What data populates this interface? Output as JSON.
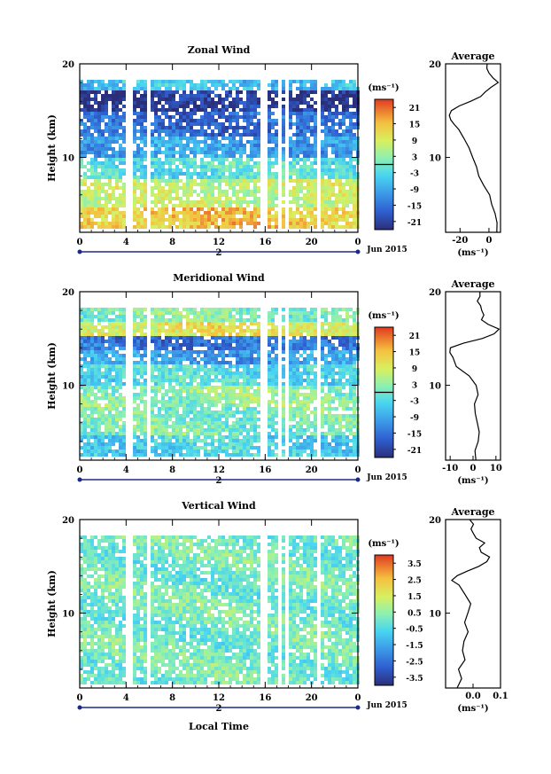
{
  "figure": {
    "date_label": "Jun 2015",
    "day_label": "2",
    "xlabel_bottom": "Local Time",
    "x_ticks": [
      "0",
      "4",
      "8",
      "12",
      "16",
      "20",
      "0"
    ],
    "height_ticks": [
      "20",
      "10"
    ],
    "ylabel": "Height (km)",
    "average_title": "Average",
    "unit_label": "(ms⁻¹)"
  },
  "chart_data": [
    {
      "type": "heatmap",
      "title": "Zonal Wind",
      "xlabel": "",
      "ylabel": "Height (km)",
      "x_range": [
        0,
        24
      ],
      "y_range": [
        2,
        20
      ],
      "colorbar_ticks": [
        "21",
        "15",
        "9",
        "3",
        "-3",
        "-9",
        "-15",
        "-21"
      ],
      "colorbar_range": [
        -24,
        24
      ],
      "gaps_local_time": [
        [
          3.8,
          4.4
        ],
        [
          5.6,
          6.0
        ],
        [
          15.4,
          15.9
        ],
        [
          16.9,
          17.3
        ],
        [
          17.6,
          17.9
        ],
        [
          20.3,
          20.7
        ]
      ],
      "layers": [
        {
          "y_from": 2.5,
          "y_to": 5,
          "value": 14
        },
        {
          "y_from": 5,
          "y_to": 8,
          "value": 7
        },
        {
          "y_from": 8,
          "y_to": 10,
          "value": -2
        },
        {
          "y_from": 10,
          "y_to": 12.5,
          "value": -10
        },
        {
          "y_from": 12.5,
          "y_to": 15,
          "value": -16
        },
        {
          "y_from": 15,
          "y_to": 17.5,
          "value": -22
        },
        {
          "y_from": 17.5,
          "y_to": 18.5,
          "value": -6
        }
      ],
      "average": {
        "x_ticks": [
          "-20",
          "0"
        ],
        "x_range": [
          -30,
          8
        ],
        "height": [
          2,
          3,
          4,
          5,
          6,
          7,
          8,
          9,
          10,
          11,
          12,
          13,
          13.5,
          14,
          14.5,
          15,
          15.5,
          16,
          16.5,
          17,
          17.5,
          18,
          18.5,
          19,
          19.5,
          20
        ],
        "values": [
          6,
          6,
          4,
          2,
          0,
          -4,
          -7,
          -9,
          -11,
          -14,
          -17,
          -21,
          -24,
          -27,
          -28,
          -26,
          -20,
          -12,
          -6,
          -2,
          2,
          6,
          3,
          0,
          -1,
          -1
        ]
      }
    },
    {
      "type": "heatmap",
      "title": "Meridional Wind",
      "xlabel": "",
      "ylabel": "Height (km)",
      "x_range": [
        0,
        24
      ],
      "y_range": [
        2,
        20
      ],
      "colorbar_ticks": [
        "21",
        "15",
        "9",
        "3",
        "-3",
        "-9",
        "-15",
        "-21"
      ],
      "colorbar_range": [
        -24,
        24
      ],
      "gaps_local_time": [
        [
          3.8,
          4.4
        ],
        [
          5.6,
          6.0
        ],
        [
          15.4,
          15.9
        ],
        [
          16.9,
          17.3
        ],
        [
          17.6,
          17.9
        ],
        [
          20.3,
          20.7
        ]
      ],
      "layers": [
        {
          "y_from": 2.5,
          "y_to": 5,
          "value": -4
        },
        {
          "y_from": 5,
          "y_to": 8,
          "value": 1
        },
        {
          "y_from": 8,
          "y_to": 10,
          "value": 3
        },
        {
          "y_from": 10,
          "y_to": 12.5,
          "value": -3
        },
        {
          "y_from": 12.5,
          "y_to": 14,
          "value": -10
        },
        {
          "y_from": 14,
          "y_to": 15.5,
          "value": -15
        },
        {
          "y_from": 15.5,
          "y_to": 17,
          "value": 10
        },
        {
          "y_from": 17,
          "y_to": 18.5,
          "value": 2
        }
      ],
      "average": {
        "x_ticks": [
          "-10",
          "0",
          "10"
        ],
        "x_range": [
          -12,
          12
        ],
        "height": [
          2,
          3,
          4,
          5,
          6,
          7,
          8,
          9,
          10,
          11,
          12,
          13,
          13.5,
          14,
          14.5,
          15,
          15.5,
          16,
          16.5,
          17,
          17.5,
          18,
          18.5,
          19,
          19.5,
          20
        ],
        "values": [
          1,
          1,
          2,
          3,
          2,
          1,
          1,
          2,
          1,
          -2,
          -7,
          -9,
          -10,
          -10,
          -4,
          4,
          9,
          11,
          7,
          4,
          5,
          4,
          3,
          2,
          3,
          3
        ]
      }
    },
    {
      "type": "heatmap",
      "title": "Vertical Wind",
      "xlabel": "Local Time",
      "ylabel": "Height (km)",
      "x_range": [
        0,
        24
      ],
      "y_range": [
        2,
        20
      ],
      "colorbar_ticks": [
        "3.5",
        "2.5",
        "1.5",
        "0.5",
        "-0.5",
        "-1.5",
        "-2.5",
        "-3.5"
      ],
      "colorbar_range": [
        -4,
        4
      ],
      "gaps_local_time": [
        [
          3.8,
          4.4
        ],
        [
          5.6,
          6.0
        ],
        [
          15.4,
          15.9
        ],
        [
          16.9,
          17.3
        ],
        [
          17.6,
          17.9
        ],
        [
          20.3,
          20.7
        ]
      ],
      "layers": [
        {
          "y_from": 2.5,
          "y_to": 18.5,
          "value": 0.1
        }
      ],
      "average": {
        "x_ticks": [
          "0.0",
          "0.1"
        ],
        "x_range": [
          -0.1,
          0.1
        ],
        "height": [
          2,
          3,
          4,
          5,
          6,
          7,
          8,
          9,
          10,
          11,
          12,
          13,
          13.5,
          14,
          14.5,
          15,
          15.5,
          16,
          16.5,
          17,
          17.5,
          18,
          18.5,
          19,
          19.5,
          20
        ],
        "values": [
          -0.06,
          -0.04,
          -0.05,
          -0.03,
          -0.04,
          -0.03,
          -0.02,
          -0.03,
          -0.02,
          -0.01,
          -0.03,
          -0.05,
          -0.08,
          -0.06,
          -0.02,
          0.02,
          0.05,
          0.06,
          0.03,
          0.02,
          0.04,
          0.01,
          0.0,
          -0.01,
          0.0,
          -0.01
        ]
      }
    }
  ]
}
